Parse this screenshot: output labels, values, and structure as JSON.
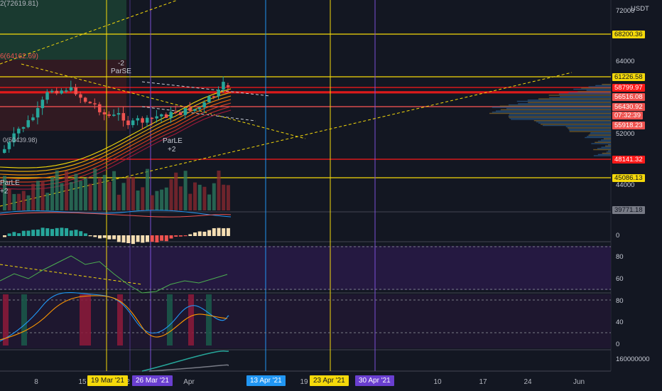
{
  "chart": {
    "currency": "USDT",
    "top_label_left": "2(72619.81)",
    "top_label_left2": "6(64162.69)",
    "left_value_label": "0(50439.98)",
    "annotations": [
      {
        "text": "-2",
        "pos": "upper"
      },
      {
        "text": "ParSE",
        "pos": "upper"
      },
      {
        "text": "ParLE",
        "pos": "mid"
      },
      {
        "text": "+2",
        "pos": "mid"
      },
      {
        "text": "ParLE",
        "pos": "left"
      },
      {
        "text": "+2",
        "pos": "left"
      }
    ]
  },
  "price_axis": {
    "ticks": [
      "72000",
      "64000",
      "52000",
      "44000"
    ],
    "lower_ticks": [
      "0",
      "80",
      "60",
      "80",
      "40",
      "0",
      "160000000"
    ]
  },
  "price_levels": [
    {
      "value": "68200.36",
      "style": "yellow"
    },
    {
      "value": "61226.58",
      "style": "yellow"
    },
    {
      "value": "58799.97",
      "style": "red"
    },
    {
      "value": "56516.08",
      "style": "red"
    },
    {
      "value": "56430.92",
      "style": "red"
    },
    {
      "value": "07:32:39",
      "style": "red"
    },
    {
      "value": "55918.23",
      "style": "red"
    },
    {
      "value": "48141.32",
      "style": "red"
    },
    {
      "value": "45086.13",
      "style": "yellow"
    },
    {
      "value": "39771.18",
      "style": "gray"
    }
  ],
  "time_axis": {
    "labels": [
      "8",
      "15",
      "2",
      "Apr",
      "19",
      "10",
      "17",
      "24",
      "Jun"
    ],
    "highlighted": [
      {
        "text": "19 Mar '21",
        "color": "yellow"
      },
      {
        "text": "26 Mar '21",
        "color": "purple"
      },
      {
        "text": "13 Apr '21",
        "color": "blue"
      },
      {
        "text": "23 Apr '21",
        "color": "yellow"
      },
      {
        "text": "30 Apr '21",
        "color": "purple"
      }
    ]
  },
  "colors": {
    "background": "#131722",
    "up": "#26a69a",
    "down": "#ef5350",
    "yellow_line": "#f5d90a",
    "red_line": "#ff1a1a",
    "purple_line": "#7b4fd6",
    "blue_line": "#2196f3",
    "rsi_band": "#2a1a4a"
  }
}
